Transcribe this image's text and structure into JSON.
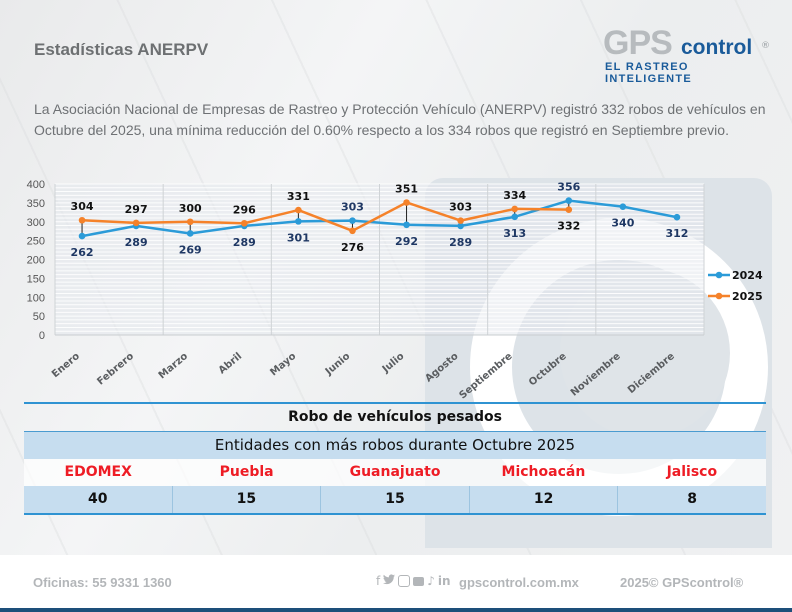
{
  "header": {
    "title": "Estadísticas ANERPV",
    "logo": {
      "gps": "GPS",
      "control": "control",
      "registered": "®",
      "tagline": "EL RASTREO INTELIGENTE"
    }
  },
  "intro_text": "La Asociación Nacional de Empresas de Rastreo y Protección Vehículo (ANERPV) registró 332 robos de vehículos en Octubre del 2025, una mínima reducción del 0.60% respecto a los 334 robos que registró en Septiembre previo.",
  "colors": {
    "series_2024": "#2b9bd8",
    "series_2025": "#f5822a",
    "accent_blue": "#2f93d2",
    "state_red": "#ee1c25",
    "brand_blue": "#1a5b9a"
  },
  "chart_data": {
    "type": "line",
    "title": "",
    "xlabel": "",
    "ylabel": "",
    "categories": [
      "Enero",
      "Febrero",
      "Marzo",
      "Abril",
      "Mayo",
      "Junio",
      "Julio",
      "Agosto",
      "Septiembre",
      "Octubre",
      "Noviembre",
      "Diciembre"
    ],
    "ylim": [
      0,
      400
    ],
    "yticks": [
      "0",
      "50",
      "100",
      "150",
      "200",
      "250",
      "300",
      "350",
      "400"
    ],
    "grid": true,
    "legend_position": "right",
    "series": [
      {
        "name": "2024",
        "values": [
          262,
          289,
          269,
          289,
          301,
          303,
          292,
          289,
          313,
          356,
          340,
          312
        ]
      },
      {
        "name": "2025",
        "values": [
          304,
          297,
          300,
          296,
          331,
          276,
          351,
          303,
          334,
          332,
          null,
          null
        ]
      }
    ]
  },
  "table": {
    "title": "Robo de vehículos pesados",
    "subtitle": "Entidades con más robos durante Octubre 2025",
    "states": [
      "EDOMEX",
      "Puebla",
      "Guanajuato",
      "Michoacán",
      "Jalisco"
    ],
    "values": [
      "40",
      "15",
      "15",
      "12",
      "8"
    ]
  },
  "footer": {
    "phone": "Oficinas: 55 9331 1360",
    "social_icons": [
      "f",
      "🐦",
      "◎",
      "▶",
      "♪",
      "in"
    ],
    "website": "gpscontrol.com.mx",
    "copyright": "2025© GPScontrol®"
  }
}
